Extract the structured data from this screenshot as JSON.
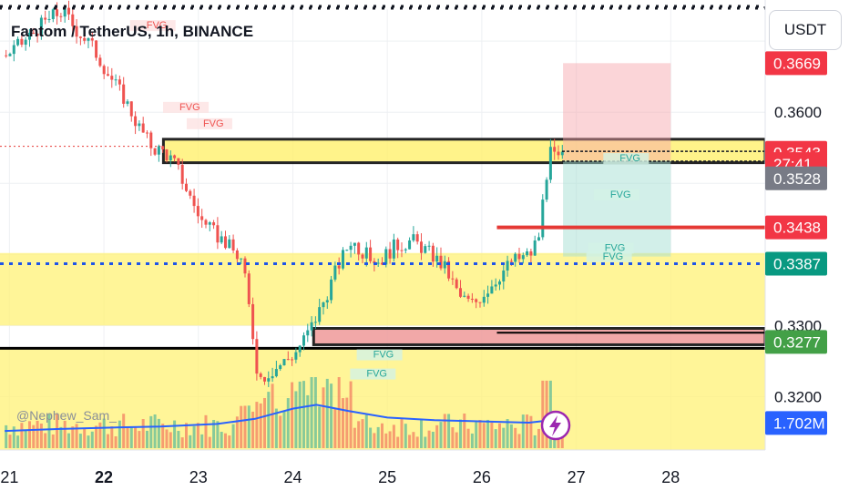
{
  "header": {
    "title": "Fantom / TetherUS, 1h, BINANCE",
    "currency": "USDT",
    "watermark": "@Nephew_Sam_"
  },
  "colors": {
    "up": "#26a69a",
    "down": "#ef5350",
    "zone": "#fff176",
    "blue_line": "#1e54e8",
    "volume_ma": "#2962ff",
    "red_level": "#e53935"
  },
  "icons": {
    "bolt": "lightning-bolt-icon"
  },
  "chart_data": {
    "type": "candlestick",
    "symbol": "FTM/USDT",
    "timeframe": "1h",
    "exchange": "BINANCE",
    "x_ticks": [
      "21",
      "22",
      "23",
      "24",
      "25",
      "26",
      "27",
      "28"
    ],
    "y_ticks": [
      "0.3600",
      "0.3300",
      "0.3200"
    ],
    "y_range": [
      0.3125,
      0.3745
    ],
    "price_tags": [
      {
        "label": "0.3669",
        "value": 0.3669,
        "role": "stop-loss",
        "color": "#f23645"
      },
      {
        "label": "0.3543",
        "value": 0.3543,
        "role": "last-price",
        "color": "#f23645"
      },
      {
        "label": "27:41",
        "value": 0.3527,
        "role": "countdown",
        "color": "#f23645"
      },
      {
        "label": "0.3528",
        "value": 0.3507,
        "role": "last-close-alt",
        "color": "#787b86"
      },
      {
        "label": "0.3438",
        "value": 0.3438,
        "role": "level",
        "color": "#f23645"
      },
      {
        "label": "0.3387",
        "value": 0.3387,
        "role": "level",
        "color": "#089981"
      },
      {
        "label": "0.3277",
        "value": 0.3277,
        "role": "level",
        "color": "#43a047"
      },
      {
        "label": "1.702M",
        "value": 0.3163,
        "role": "volume",
        "color": "#2962ff"
      }
    ],
    "zones": [
      {
        "from": 0.3529,
        "to": 0.3562,
        "x0": 22.63,
        "x1": 29.0,
        "style": "yellow-boxed"
      },
      {
        "from": 0.33,
        "to": 0.3402,
        "x0": 20.9,
        "x1": 29.0,
        "style": "yellow"
      },
      {
        "from": 0.3125,
        "to": 0.3268,
        "x0": 20.9,
        "x1": 29.0,
        "style": "yellow"
      },
      {
        "from": 0.3273,
        "to": 0.3296,
        "x0": 24.22,
        "x1": 29.0,
        "style": "boxed-red"
      }
    ],
    "position": {
      "entry": 0.3532,
      "stop": 0.3669,
      "target": 0.3397,
      "x0": 26.86,
      "x1": 28.0,
      "side": "short"
    },
    "horizontal_lines": [
      {
        "value": 0.3387,
        "style": "dotted",
        "color": "#1e54e8"
      },
      {
        "value": 0.3438,
        "style": "solid",
        "color": "#e53935",
        "x0": 26.16
      },
      {
        "value": 0.3552,
        "style": "dotted-red",
        "color": "#e53935",
        "x0": 20.9,
        "x1": 22.6
      },
      {
        "value": 0.3531,
        "style": "dashed",
        "color": "#131722",
        "x0": 26.85
      },
      {
        "value": 0.3545,
        "style": "dashed",
        "color": "#131722",
        "x0": 26.85
      }
    ],
    "fvg": [
      {
        "label": "FVG",
        "x": 22.45,
        "value": 0.3718,
        "color": "#ef5350"
      },
      {
        "label": "FVG",
        "x": 22.8,
        "value": 0.3603,
        "color": "#ef5350"
      },
      {
        "label": "FVG",
        "x": 23.05,
        "value": 0.358,
        "color": "#ef5350"
      },
      {
        "label": "FVG",
        "x": 27.46,
        "value": 0.3531,
        "color": "#26a69a"
      },
      {
        "label": "FVG",
        "x": 27.36,
        "value": 0.348,
        "color": "#26a69a"
      },
      {
        "label": "FVG",
        "x": 27.3,
        "value": 0.3405,
        "color": "#26a69a"
      },
      {
        "label": "FVG",
        "x": 27.28,
        "value": 0.3393,
        "color": "#26a69a"
      },
      {
        "label": "FVG",
        "x": 24.85,
        "value": 0.3255,
        "color": "#26a69a"
      },
      {
        "label": "FVG",
        "x": 24.78,
        "value": 0.3228,
        "color": "#26a69a"
      }
    ],
    "price_path": [
      [
        20.95,
        0.368
      ],
      [
        21.15,
        0.37
      ],
      [
        21.3,
        0.372
      ],
      [
        21.45,
        0.3735
      ],
      [
        21.55,
        0.3742
      ],
      [
        21.7,
        0.3715
      ],
      [
        21.85,
        0.3695
      ],
      [
        22.05,
        0.365
      ],
      [
        22.2,
        0.362
      ],
      [
        22.35,
        0.358
      ],
      [
        22.5,
        0.355
      ],
      [
        22.62,
        0.3545
      ],
      [
        22.75,
        0.3525
      ],
      [
        22.9,
        0.348
      ],
      [
        23.05,
        0.344
      ],
      [
        23.25,
        0.342
      ],
      [
        23.45,
        0.339
      ],
      [
        23.55,
        0.33
      ],
      [
        23.62,
        0.3225
      ],
      [
        23.8,
        0.324
      ],
      [
        24.0,
        0.326
      ],
      [
        24.15,
        0.329
      ],
      [
        24.3,
        0.333
      ],
      [
        24.45,
        0.338
      ],
      [
        24.6,
        0.342
      ],
      [
        24.75,
        0.34
      ],
      [
        24.9,
        0.339
      ],
      [
        25.05,
        0.341
      ],
      [
        25.25,
        0.342
      ],
      [
        25.45,
        0.34
      ],
      [
        25.6,
        0.338
      ],
      [
        25.75,
        0.334
      ],
      [
        25.9,
        0.333
      ],
      [
        26.1,
        0.336
      ],
      [
        26.3,
        0.339
      ],
      [
        26.5,
        0.34
      ],
      [
        26.6,
        0.343
      ],
      [
        26.65,
        0.35
      ],
      [
        26.72,
        0.3545
      ],
      [
        26.8,
        0.353
      ],
      [
        26.86,
        0.3543
      ]
    ],
    "volume_ma_path": [
      [
        20.95,
        0.27
      ],
      [
        21.5,
        0.3
      ],
      [
        22.0,
        0.32
      ],
      [
        22.6,
        0.34
      ],
      [
        23.2,
        0.38
      ],
      [
        23.6,
        0.46
      ],
      [
        24.0,
        0.62
      ],
      [
        24.25,
        0.68
      ],
      [
        24.6,
        0.58
      ],
      [
        25.0,
        0.48
      ],
      [
        25.5,
        0.44
      ],
      [
        26.0,
        0.42
      ],
      [
        26.5,
        0.4
      ],
      [
        26.86,
        0.46
      ]
    ]
  }
}
